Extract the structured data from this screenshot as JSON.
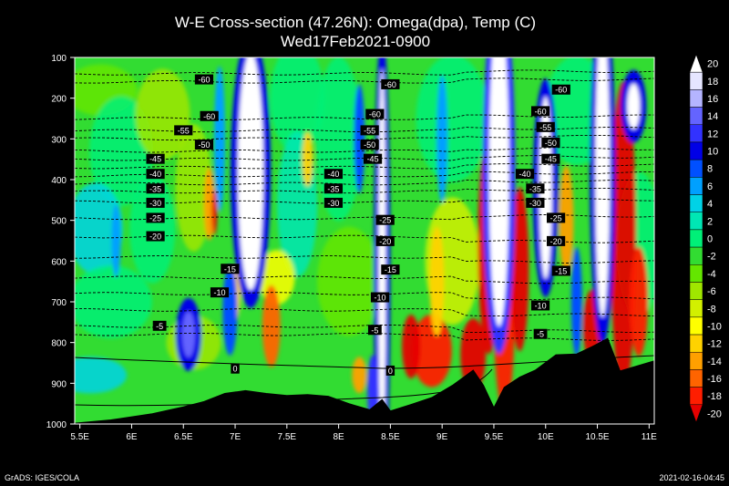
{
  "chart_data": {
    "type": "heatmap",
    "title": "W-E Cross-section (47.26N): Omega(dpa), Temp (C)",
    "subtitle": "Wed17Feb2021-0900",
    "footer_left": "GrADS: IGES/COLA",
    "footer_right": "2021-02-16-04:45",
    "x_ticks": [
      "5.5E",
      "6E",
      "6.5E",
      "7E",
      "7.5E",
      "8E",
      "8.5E",
      "9E",
      "9.5E",
      "10E",
      "10.5E",
      "11E"
    ],
    "x_tick_values": [
      5.5,
      6,
      6.5,
      7,
      7.5,
      8,
      8.5,
      9,
      9.5,
      10,
      10.5,
      11
    ],
    "xlim": [
      5.45,
      11.05
    ],
    "y_ticks": [
      "100",
      "200",
      "300",
      "400",
      "500",
      "600",
      "700",
      "800",
      "900",
      "1000"
    ],
    "y_tick_values": [
      100,
      200,
      300,
      400,
      500,
      600,
      700,
      800,
      900,
      1000
    ],
    "ylim": [
      100,
      1000
    ],
    "colorbar_labels": [
      "20",
      "18",
      "16",
      "14",
      "12",
      "10",
      "8",
      "6",
      "4",
      "2",
      "0",
      "-2",
      "-4",
      "-6",
      "-8",
      "-10",
      "-12",
      "-14",
      "-16",
      "-18",
      "-20"
    ],
    "colorbar_colors": [
      "#ffffff",
      "#e6e6ff",
      "#b4b4ff",
      "#6464ff",
      "#3232ff",
      "#0000e6",
      "#0050ff",
      "#00a0ff",
      "#00d2e6",
      "#00e6b4",
      "#00f078",
      "#32dc32",
      "#64e600",
      "#a0e600",
      "#d2f000",
      "#ffff00",
      "#ffd200",
      "#ffa000",
      "#ff6400",
      "#ff1e00",
      "#e60000"
    ],
    "temp_contours": [
      {
        "label": "-60",
        "y": 155,
        "x": 6.7
      },
      {
        "label": "-60",
        "y": 167,
        "x": 8.5
      },
      {
        "label": "-60",
        "y": 180,
        "x": 10.15
      },
      {
        "label": "-60",
        "y": 245,
        "x": 6.75
      },
      {
        "label": "-60",
        "y": 240,
        "x": 8.35
      },
      {
        "label": "-60",
        "y": 233,
        "x": 9.95
      },
      {
        "label": "-55",
        "y": 280,
        "x": 6.5
      },
      {
        "label": "-55",
        "y": 280,
        "x": 8.3
      },
      {
        "label": "-55",
        "y": 272,
        "x": 10.0
      },
      {
        "label": "-50",
        "y": 315,
        "x": 6.7
      },
      {
        "label": "-50",
        "y": 315,
        "x": 8.3
      },
      {
        "label": "-50",
        "y": 310,
        "x": 10.05
      },
      {
        "label": "-45",
        "y": 350,
        "x": 6.23
      },
      {
        "label": "-45",
        "y": 350,
        "x": 8.33
      },
      {
        "label": "-45",
        "y": 350,
        "x": 10.05
      },
      {
        "label": "-40",
        "y": 387,
        "x": 6.23
      },
      {
        "label": "-40",
        "y": 387,
        "x": 7.95
      },
      {
        "label": "-40",
        "y": 387,
        "x": 9.8
      },
      {
        "label": "-35",
        "y": 423,
        "x": 6.23
      },
      {
        "label": "-35",
        "y": 423,
        "x": 7.95
      },
      {
        "label": "-35",
        "y": 423,
        "x": 9.9
      },
      {
        "label": "-30",
        "y": 458,
        "x": 6.23
      },
      {
        "label": "-30",
        "y": 458,
        "x": 7.95
      },
      {
        "label": "-30",
        "y": 458,
        "x": 9.9
      },
      {
        "label": "-25",
        "y": 495,
        "x": 6.23
      },
      {
        "label": "-25",
        "y": 500,
        "x": 8.45
      },
      {
        "label": "-25",
        "y": 495,
        "x": 10.1
      },
      {
        "label": "-20",
        "y": 540,
        "x": 6.23
      },
      {
        "label": "-20",
        "y": 552,
        "x": 8.45
      },
      {
        "label": "-20",
        "y": 552,
        "x": 10.1
      },
      {
        "label": "-15",
        "y": 620,
        "x": 6.95
      },
      {
        "label": "-15",
        "y": 622,
        "x": 8.5
      },
      {
        "label": "-15",
        "y": 625,
        "x": 10.15
      },
      {
        "label": "-10",
        "y": 678,
        "x": 6.85
      },
      {
        "label": "-10",
        "y": 690,
        "x": 8.4
      },
      {
        "label": "-10",
        "y": 710,
        "x": 9.95
      },
      {
        "label": "-5",
        "y": 760,
        "x": 6.27
      },
      {
        "label": "-5",
        "y": 770,
        "x": 8.35
      },
      {
        "label": "-5",
        "y": 780,
        "x": 9.95
      },
      {
        "label": "0",
        "y": 865,
        "x": 7.0
      },
      {
        "label": "0",
        "y": 870,
        "x": 8.5
      }
    ]
  }
}
